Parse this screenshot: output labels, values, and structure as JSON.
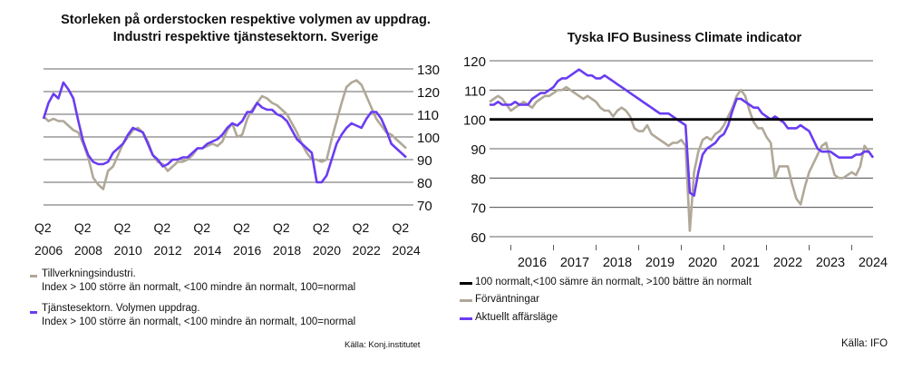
{
  "left": {
    "title_line1": "Storleken på orderstocken respektive volymen av uppdrag.",
    "title_line2": "Industri respektive tjänstesektorn. Sverige",
    "legend1_line1": "Tillverkningsindustri.",
    "legend1_line2": "Index > 100 större än normalt, <100 mindre än normalt, 100=normal",
    "legend2_line1": "Tjänstesektorn. Volymen uppdrag.",
    "legend2_line2": "Index > 100 större än normalt, <100 mindre än normalt, 100=normal",
    "source": "Källa: Konj.institutet"
  },
  "right": {
    "title": "Tyska IFO Business Climate indicator",
    "legend1": "100 normalt,<100 sämre än normalt, >100 bättre än normalt",
    "legend2": "Förväntningar",
    "legend3": "Aktuellt affärsläge",
    "source": "Källa: IFO"
  },
  "colors": {
    "grey": "#b0a898",
    "purple": "#6a3cf2",
    "black": "#000000",
    "grid": "#333333"
  },
  "chart_data": [
    {
      "type": "line",
      "title": "Storleken på orderstocken respektive volymen av uppdrag. Industri respektive tjänstesektorn. Sverige",
      "ylim": [
        70,
        130
      ],
      "y_ticks": [
        70,
        80,
        90,
        100,
        110,
        120,
        130
      ],
      "x_range": [
        2006.25,
        2024.5
      ],
      "x_tick_labels": [
        {
          "x": 2006.25,
          "top": "Q2",
          "bottom": "2006"
        },
        {
          "x": 2008.25,
          "top": "Q2",
          "bottom": "2008"
        },
        {
          "x": 2010.25,
          "top": "Q2",
          "bottom": "2010"
        },
        {
          "x": 2012.25,
          "top": "Q2",
          "bottom": "2012"
        },
        {
          "x": 2014.25,
          "top": "Q2",
          "bottom": "2014"
        },
        {
          "x": 2016.25,
          "top": "Q2",
          "bottom": "2016"
        },
        {
          "x": 2018.25,
          "top": "Q2",
          "bottom": "2018"
        },
        {
          "x": 2020.25,
          "top": "Q2",
          "bottom": "2020"
        },
        {
          "x": 2022.25,
          "top": "Q2",
          "bottom": "2022"
        },
        {
          "x": 2024.25,
          "top": "Q2",
          "bottom": "2024"
        }
      ],
      "grid": "horizontal",
      "series": [
        {
          "name": "Tillverkningsindustri. Index > 100 större än normalt, <100 mindre än normalt, 100=normal",
          "color": "#b0a898",
          "x": [
            2006.25,
            2006.5,
            2006.75,
            2007.0,
            2007.25,
            2007.5,
            2007.75,
            2008.0,
            2008.25,
            2008.5,
            2008.75,
            2009.0,
            2009.25,
            2009.5,
            2009.75,
            2010.0,
            2010.25,
            2010.5,
            2010.75,
            2011.0,
            2011.25,
            2011.5,
            2011.75,
            2012.0,
            2012.25,
            2012.5,
            2012.75,
            2013.0,
            2013.25,
            2013.5,
            2013.75,
            2014.0,
            2014.25,
            2014.5,
            2014.75,
            2015.0,
            2015.25,
            2015.5,
            2015.75,
            2016.0,
            2016.25,
            2016.5,
            2016.75,
            2017.0,
            2017.25,
            2017.5,
            2017.75,
            2018.0,
            2018.25,
            2018.5,
            2018.75,
            2019.0,
            2019.25,
            2019.5,
            2019.75,
            2020.0,
            2020.25,
            2020.5,
            2020.75,
            2021.0,
            2021.25,
            2021.5,
            2021.75,
            2022.0,
            2022.25,
            2022.5,
            2022.75,
            2023.0,
            2023.25,
            2023.5,
            2023.75,
            2024.0,
            2024.25,
            2024.5
          ],
          "values": [
            109,
            107,
            108,
            107,
            107,
            105,
            103,
            102,
            97,
            91,
            82,
            79,
            77,
            85,
            87,
            92,
            97,
            100,
            103,
            104,
            102,
            98,
            92,
            89,
            88,
            85,
            87,
            89,
            89,
            90,
            92,
            95,
            95,
            96,
            97,
            96,
            98,
            103,
            106,
            100,
            101,
            108,
            112,
            115,
            118,
            117,
            115,
            114,
            112,
            110,
            106,
            102,
            97,
            93,
            90,
            90,
            89,
            90,
            99,
            107,
            115,
            122,
            124,
            125,
            123,
            118,
            113,
            108,
            105,
            102,
            101,
            99,
            97,
            95
          ],
          "label_lines": [
            "Tillverkningsindustri.",
            "Index > 100 större än normalt, <100 mindre än normalt, 100=normal"
          ]
        },
        {
          "name": "Tjänstesektorn. Volymen uppdrag. Index > 100 större än normalt, <100 mindre än normalt, 100=normal",
          "color": "#6a3cf2",
          "x": [
            2006.25,
            2006.5,
            2006.75,
            2007.0,
            2007.25,
            2007.5,
            2007.75,
            2008.0,
            2008.25,
            2008.5,
            2008.75,
            2009.0,
            2009.25,
            2009.5,
            2009.75,
            2010.0,
            2010.25,
            2010.5,
            2010.75,
            2011.0,
            2011.25,
            2011.5,
            2011.75,
            2012.0,
            2012.25,
            2012.5,
            2012.75,
            2013.0,
            2013.25,
            2013.5,
            2013.75,
            2014.0,
            2014.25,
            2014.5,
            2014.75,
            2015.0,
            2015.25,
            2015.5,
            2015.75,
            2016.0,
            2016.25,
            2016.5,
            2016.75,
            2017.0,
            2017.25,
            2017.5,
            2017.75,
            2018.0,
            2018.25,
            2018.5,
            2018.75,
            2019.0,
            2019.25,
            2019.5,
            2019.75,
            2020.0,
            2020.25,
            2020.5,
            2020.75,
            2021.0,
            2021.25,
            2021.5,
            2021.75,
            2022.0,
            2022.25,
            2022.5,
            2022.75,
            2023.0,
            2023.25,
            2023.5,
            2023.75,
            2024.0,
            2024.25,
            2024.5
          ],
          "values": [
            108,
            115,
            119,
            117,
            124,
            121,
            117,
            107,
            98,
            92,
            89,
            88,
            88,
            89,
            93,
            95,
            97,
            101,
            104,
            103,
            102,
            97,
            92,
            90,
            87,
            88,
            90,
            90,
            91,
            91,
            93,
            95,
            95,
            97,
            98,
            99,
            101,
            104,
            106,
            105,
            107,
            111,
            111,
            115,
            113,
            112,
            112,
            110,
            109,
            107,
            103,
            99,
            97,
            95,
            93,
            80,
            80,
            83,
            90,
            97,
            101,
            104,
            106,
            105,
            104,
            108,
            111,
            111,
            108,
            103,
            97,
            95,
            93,
            91
          ],
          "label_lines": [
            "Tjänstesektorn. Volymen uppdrag.",
            "Index > 100 större än normalt, <100 mindre än normalt, 100=normal"
          ]
        }
      ]
    },
    {
      "type": "line",
      "title": "Tyska IFO Business Climate indicator",
      "ylim": [
        60,
        120
      ],
      "y_ticks": [
        60,
        70,
        80,
        90,
        100,
        110,
        120
      ],
      "x_range": [
        2015.5,
        2024.5
      ],
      "x_tick_labels": [
        "2016",
        "2017",
        "2018",
        "2019",
        "2020",
        "2021",
        "2022",
        "2023",
        "2024"
      ],
      "grid": "horizontal",
      "reference_line": {
        "y": 100,
        "label": "100 normalt,<100 sämre än normalt, >100 bättre än normalt"
      },
      "series": [
        {
          "name": "Förväntningar",
          "color": "#b0a898",
          "x": [
            2015.5,
            2015.6,
            2015.7,
            2015.8,
            2015.9,
            2016.0,
            2016.1,
            2016.2,
            2016.3,
            2016.4,
            2016.5,
            2016.6,
            2016.7,
            2016.8,
            2016.9,
            2017.0,
            2017.1,
            2017.2,
            2017.3,
            2017.4,
            2017.5,
            2017.6,
            2017.7,
            2017.8,
            2017.9,
            2018.0,
            2018.1,
            2018.2,
            2018.3,
            2018.4,
            2018.5,
            2018.6,
            2018.7,
            2018.8,
            2018.9,
            2019.0,
            2019.1,
            2019.2,
            2019.3,
            2019.4,
            2019.5,
            2019.6,
            2019.7,
            2019.8,
            2019.9,
            2020.0,
            2020.1,
            2020.2,
            2020.3,
            2020.4,
            2020.5,
            2020.6,
            2020.7,
            2020.8,
            2020.9,
            2021.0,
            2021.1,
            2021.2,
            2021.3,
            2021.4,
            2021.5,
            2021.6,
            2021.7,
            2021.8,
            2021.9,
            2022.0,
            2022.1,
            2022.2,
            2022.3,
            2022.4,
            2022.5,
            2022.6,
            2022.7,
            2022.8,
            2022.9,
            2023.0,
            2023.1,
            2023.2,
            2023.3,
            2023.4,
            2023.5,
            2023.6,
            2023.7,
            2023.8,
            2023.9,
            2024.0,
            2024.1,
            2024.2,
            2024.3,
            2024.4,
            2024.5
          ],
          "values": [
            106,
            107,
            108,
            107,
            105,
            103,
            104,
            105,
            106,
            105,
            104,
            106,
            107,
            108,
            108,
            109,
            110,
            110,
            111,
            110,
            109,
            108,
            107,
            108,
            107,
            106,
            104,
            103,
            103,
            101,
            103,
            104,
            103,
            101,
            97,
            96,
            96,
            98,
            95,
            94,
            93,
            92,
            91,
            92,
            92,
            93,
            91,
            62,
            82,
            89,
            93,
            94,
            93,
            95,
            96,
            98,
            101,
            104,
            108,
            110,
            108,
            103,
            99,
            97,
            97,
            94,
            92,
            80,
            84,
            84,
            84,
            78,
            73,
            71,
            77,
            82,
            85,
            88,
            91,
            92,
            86,
            81,
            80,
            80,
            81,
            82,
            81,
            84,
            91,
            89,
            87
          ],
          "label_lines": [
            "Förväntningar"
          ]
        },
        {
          "name": "Aktuellt affärsläge",
          "color": "#6a3cf2",
          "x": [
            2015.5,
            2015.6,
            2015.7,
            2015.8,
            2015.9,
            2016.0,
            2016.1,
            2016.2,
            2016.3,
            2016.4,
            2016.5,
            2016.6,
            2016.7,
            2016.8,
            2016.9,
            2017.0,
            2017.1,
            2017.2,
            2017.3,
            2017.4,
            2017.5,
            2017.6,
            2017.7,
            2017.8,
            2017.9,
            2018.0,
            2018.1,
            2018.2,
            2018.3,
            2018.4,
            2018.5,
            2018.6,
            2018.7,
            2018.8,
            2018.9,
            2019.0,
            2019.1,
            2019.2,
            2019.3,
            2019.4,
            2019.5,
            2019.6,
            2019.7,
            2019.8,
            2019.9,
            2020.0,
            2020.1,
            2020.2,
            2020.3,
            2020.4,
            2020.5,
            2020.6,
            2020.7,
            2020.8,
            2020.9,
            2021.0,
            2021.1,
            2021.2,
            2021.3,
            2021.4,
            2021.5,
            2021.6,
            2021.7,
            2021.8,
            2021.9,
            2022.0,
            2022.1,
            2022.2,
            2022.3,
            2022.4,
            2022.5,
            2022.6,
            2022.7,
            2022.8,
            2022.9,
            2023.0,
            2023.1,
            2023.2,
            2023.3,
            2023.4,
            2023.5,
            2023.6,
            2023.7,
            2023.8,
            2023.9,
            2024.0,
            2024.1,
            2024.2,
            2024.3,
            2024.4,
            2024.5
          ],
          "values": [
            105,
            105,
            106,
            105,
            105,
            105,
            106,
            105,
            105,
            105,
            107,
            108,
            109,
            109,
            110,
            111,
            113,
            114,
            114,
            115,
            116,
            117,
            116,
            115,
            115,
            114,
            114,
            115,
            114,
            113,
            112,
            111,
            110,
            109,
            108,
            107,
            106,
            105,
            104,
            103,
            102,
            102,
            102,
            101,
            100,
            99,
            98,
            75,
            74,
            82,
            88,
            90,
            91,
            92,
            94,
            95,
            98,
            103,
            107,
            107,
            106,
            105,
            104,
            104,
            102,
            101,
            100,
            101,
            100,
            99,
            97,
            97,
            97,
            98,
            97,
            96,
            93,
            90,
            89,
            89,
            89,
            88,
            87,
            87,
            87,
            87,
            88,
            88,
            89,
            89,
            87
          ],
          "label_lines": [
            "Aktuellt affärsläge"
          ]
        }
      ]
    }
  ]
}
